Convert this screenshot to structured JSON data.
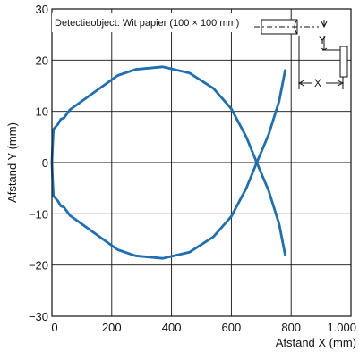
{
  "chart_data": {
    "type": "line",
    "xlabel": "Afstand X (mm)",
    "ylabel": "Afstand Y (mm)",
    "xlim": [
      0,
      1000
    ],
    "ylim": [
      -30,
      30
    ],
    "x_ticks": [
      {
        "value": 0,
        "label": "0"
      },
      {
        "value": 200,
        "label": "200"
      },
      {
        "value": 400,
        "label": "400"
      },
      {
        "value": 600,
        "label": "600"
      },
      {
        "value": 800,
        "label": "800"
      },
      {
        "value": 1000,
        "label": "1.000"
      }
    ],
    "y_ticks": [
      {
        "value": 30,
        "label": "30"
      },
      {
        "value": 20,
        "label": "20"
      },
      {
        "value": 10,
        "label": "10"
      },
      {
        "value": 0,
        "label": "0"
      },
      {
        "value": -10,
        "label": "−10"
      },
      {
        "value": -20,
        "label": "−20"
      },
      {
        "value": -30,
        "label": "−30"
      }
    ],
    "grid": true,
    "annotation": "Detectieobject: Wit papier (100 × 100 mm)",
    "diagram_labels": {
      "y": "Y",
      "x": "X"
    },
    "line_color": "#1f6fb4",
    "series": [
      {
        "values": [
          {
            "x": 0,
            "y": 0
          },
          {
            "x": 2,
            "y": 3
          },
          {
            "x": 5,
            "y": 6.5
          },
          {
            "x": 20,
            "y": 7.5
          },
          {
            "x": 30,
            "y": 8.5
          },
          {
            "x": 40,
            "y": 8.7
          },
          {
            "x": 50,
            "y": 9.5
          },
          {
            "x": 60,
            "y": 10.3
          },
          {
            "x": 100,
            "y": 12.0
          },
          {
            "x": 160,
            "y": 14.5
          },
          {
            "x": 220,
            "y": 17.0
          },
          {
            "x": 280,
            "y": 18.2
          },
          {
            "x": 370,
            "y": 18.7
          },
          {
            "x": 460,
            "y": 17.5
          },
          {
            "x": 540,
            "y": 14.5
          },
          {
            "x": 600,
            "y": 10.5
          },
          {
            "x": 650,
            "y": 5.0
          },
          {
            "x": 685,
            "y": 0
          },
          {
            "x": 725,
            "y": -5.5
          },
          {
            "x": 760,
            "y": -12.0
          },
          {
            "x": 780,
            "y": -18.0
          }
        ]
      },
      {
        "values": [
          {
            "x": 0,
            "y": 0
          },
          {
            "x": 2,
            "y": -3
          },
          {
            "x": 5,
            "y": -6.5
          },
          {
            "x": 20,
            "y": -7.5
          },
          {
            "x": 30,
            "y": -8.5
          },
          {
            "x": 40,
            "y": -8.7
          },
          {
            "x": 50,
            "y": -9.5
          },
          {
            "x": 60,
            "y": -10.3
          },
          {
            "x": 100,
            "y": -12.0
          },
          {
            "x": 160,
            "y": -14.5
          },
          {
            "x": 220,
            "y": -17.0
          },
          {
            "x": 280,
            "y": -18.2
          },
          {
            "x": 370,
            "y": -18.7
          },
          {
            "x": 460,
            "y": -17.5
          },
          {
            "x": 540,
            "y": -14.5
          },
          {
            "x": 600,
            "y": -10.5
          },
          {
            "x": 650,
            "y": -5.0
          },
          {
            "x": 685,
            "y": 0
          },
          {
            "x": 725,
            "y": 5.5
          },
          {
            "x": 760,
            "y": 12.0
          },
          {
            "x": 780,
            "y": 18.0
          }
        ]
      }
    ]
  }
}
